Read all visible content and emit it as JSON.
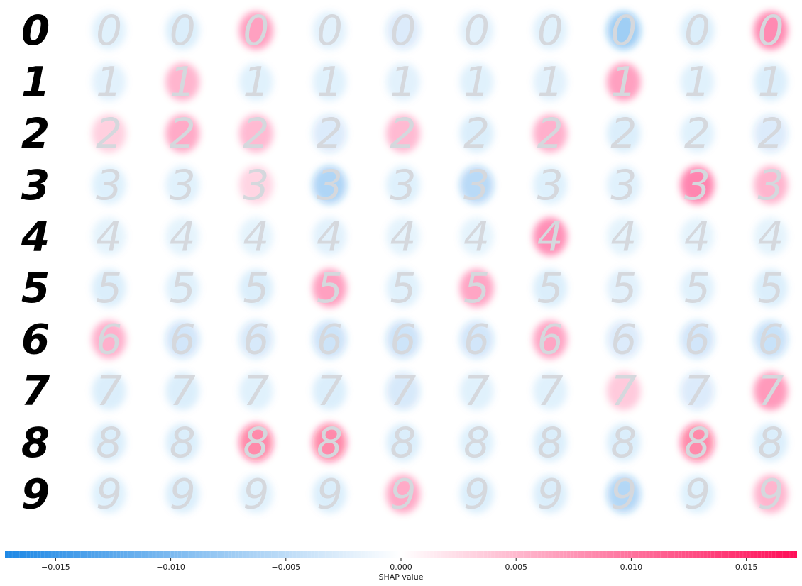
{
  "chart_data": {
    "type": "heatmap",
    "description_kind": "SHAP image explanation grid",
    "rows": [
      "0",
      "1",
      "2",
      "3",
      "4",
      "5",
      "6",
      "7",
      "8",
      "9"
    ],
    "column_count": 11,
    "colorbar": {
      "label": "SHAP value",
      "ticks": [
        -0.015,
        -0.01,
        -0.005,
        0.0,
        0.005,
        0.01,
        0.015
      ],
      "tick_labels": [
        "−0.015",
        "−0.010",
        "−0.005",
        "0.000",
        "0.005",
        "0.010",
        "0.015"
      ],
      "range": [
        -0.0172,
        0.0172
      ],
      "color_negative": "#1e88e5",
      "color_positive": "#ff0d57",
      "color_zero": "#ffffff"
    },
    "attribution_strength": [
      [
        0,
        0.1,
        0.15,
        0.7,
        0.08,
        0.2,
        0.08,
        0.1,
        0.8,
        0.15,
        0.9
      ],
      [
        0,
        0.08,
        0.5,
        0.1,
        0.1,
        0.08,
        0.1,
        0.08,
        0.7,
        0.1,
        0.15
      ],
      [
        0,
        0.25,
        0.6,
        0.45,
        0.2,
        0.45,
        0.15,
        0.55,
        0.15,
        0.1,
        0.2
      ],
      [
        0,
        0.12,
        0.1,
        0.2,
        0.65,
        0.12,
        0.55,
        0.12,
        0.1,
        0.95,
        0.5
      ],
      [
        0,
        0.05,
        0.05,
        0.05,
        0.08,
        0.05,
        0.05,
        0.85,
        0.05,
        0.05,
        0.05
      ],
      [
        0,
        0.15,
        0.1,
        0.15,
        0.7,
        0.1,
        0.65,
        0.15,
        0.08,
        0.1,
        0.15
      ],
      [
        0,
        0.55,
        0.3,
        0.25,
        0.35,
        0.35,
        0.3,
        0.65,
        0.2,
        0.3,
        0.4
      ],
      [
        0,
        0.15,
        0.15,
        0.1,
        0.15,
        0.25,
        0.1,
        0.1,
        0.3,
        0.2,
        0.75
      ],
      [
        0,
        0.15,
        0.15,
        1.0,
        1.0,
        0.15,
        0.12,
        0.15,
        0.15,
        1.0,
        0.15
      ],
      [
        0,
        0.12,
        0.15,
        0.1,
        0.15,
        0.6,
        0.15,
        0.15,
        0.6,
        0.12,
        0.5
      ]
    ],
    "attribution_sign": [
      [
        0,
        -1,
        -1,
        1,
        -1,
        -1,
        -1,
        -1,
        -1,
        -1,
        1
      ],
      [
        0,
        -1,
        1,
        -1,
        -1,
        -1,
        -1,
        -1,
        1,
        -1,
        -1
      ],
      [
        0,
        1,
        1,
        1,
        -1,
        1,
        -1,
        1,
        -1,
        -1,
        -1
      ],
      [
        0,
        -1,
        -1,
        1,
        -1,
        -1,
        -1,
        -1,
        -1,
        1,
        1
      ],
      [
        0,
        -1,
        -1,
        -1,
        -1,
        -1,
        -1,
        1,
        -1,
        -1,
        -1
      ],
      [
        0,
        -1,
        -1,
        -1,
        1,
        -1,
        1,
        -1,
        -1,
        -1,
        -1
      ],
      [
        0,
        1,
        -1,
        -1,
        -1,
        -1,
        -1,
        1,
        -1,
        -1,
        -1
      ],
      [
        0,
        -1,
        -1,
        -1,
        -1,
        -1,
        -1,
        -1,
        1,
        -1,
        1
      ],
      [
        0,
        -1,
        -1,
        1,
        1,
        -1,
        -1,
        -1,
        -1,
        1,
        -1
      ],
      [
        0,
        -1,
        -1,
        -1,
        -1,
        1,
        -1,
        -1,
        -1,
        -1,
        1
      ]
    ]
  }
}
